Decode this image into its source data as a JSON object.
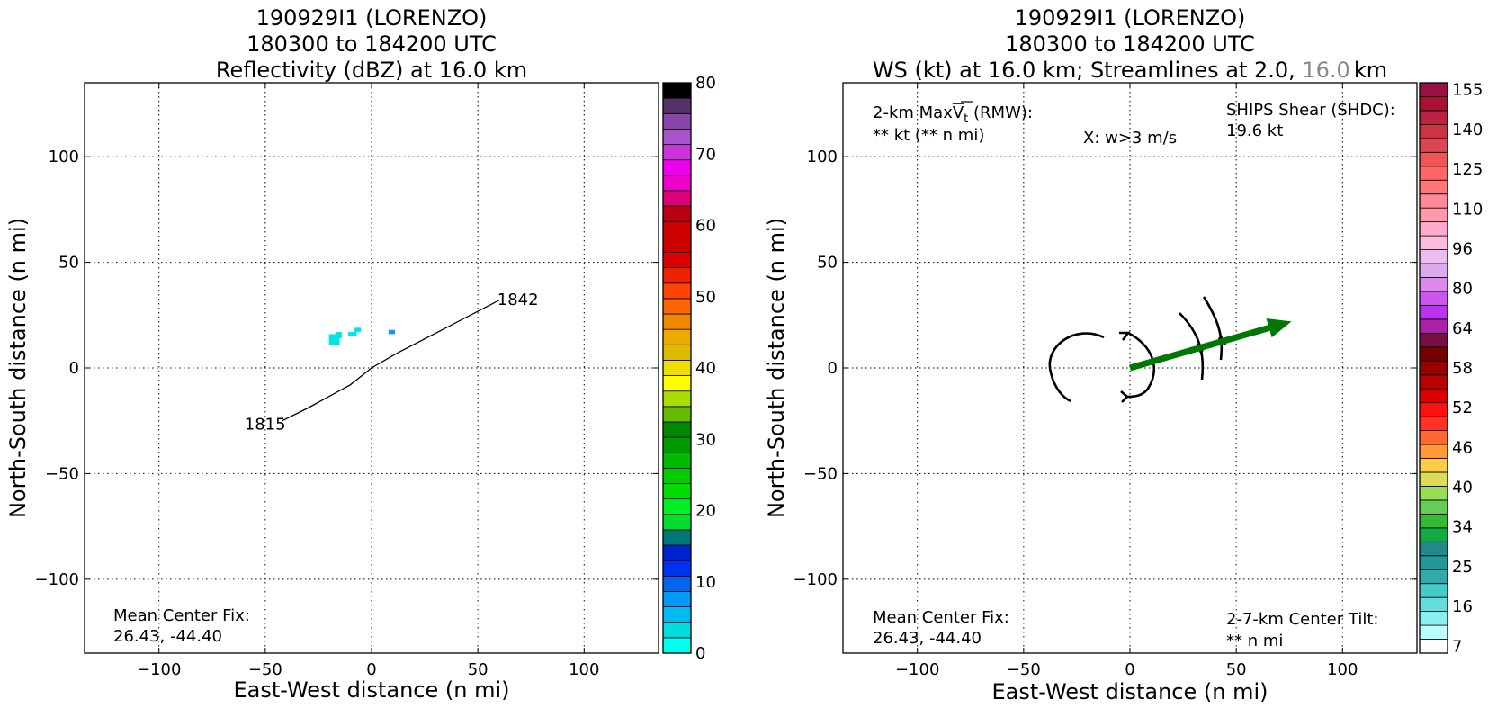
{
  "chart_data": [
    {
      "type": "heatmap",
      "title_lines": [
        "190929I1 (LORENZO)",
        "180300 to 184200 UTC",
        "Reflectivity (dBZ) at 16.0 km"
      ],
      "xlabel": "East-West distance (n mi)",
      "ylabel": "North-South distance (n mi)",
      "xlim": [
        -135,
        135
      ],
      "ylim": [
        -135,
        135
      ],
      "xticks": [
        -100,
        -50,
        0,
        50,
        100
      ],
      "yticks": [
        -100,
        -50,
        0,
        50,
        100
      ],
      "xtick_labels": [
        "−100",
        "−50",
        "0",
        "50",
        "100"
      ],
      "ytick_labels": [
        "−100",
        "−50",
        "0",
        "50",
        "100"
      ],
      "grid": true,
      "track": {
        "points": [
          [
            -42,
            -25
          ],
          [
            -30,
            -19
          ],
          [
            -10,
            -8
          ],
          [
            0,
            0
          ],
          [
            12,
            7
          ],
          [
            60,
            32
          ]
        ],
        "start_label": "1815",
        "end_label": "1842",
        "label_color": "#666666"
      },
      "echoes": [
        {
          "x": -20,
          "y": 11,
          "w": 5,
          "h": 5,
          "color": "#00e5e5"
        },
        {
          "x": -17,
          "y": 14,
          "w": 3,
          "h": 3,
          "color": "#00e5e5"
        },
        {
          "x": -11,
          "y": 15,
          "w": 4,
          "h": 2,
          "color": "#00e5e5"
        },
        {
          "x": -8,
          "y": 17,
          "w": 3,
          "h": 2,
          "color": "#00e5e5"
        },
        {
          "x": 8,
          "y": 16,
          "w": 3,
          "h": 2,
          "color": "#0aa0f0"
        }
      ],
      "annotations": {
        "center_fix_label": "Mean Center Fix:",
        "center_fix_value": "26.43, -44.40"
      },
      "colorbar": {
        "tick_labels": [
          "0",
          "10",
          "20",
          "30",
          "40",
          "50",
          "60",
          "70",
          "80"
        ],
        "colors": [
          "#00ffee",
          "#00dde0",
          "#00bbf0",
          "#0099f5",
          "#0066f0",
          "#0033f0",
          "#0022cc",
          "#007777",
          "#00dd33",
          "#00ee22",
          "#00dd00",
          "#00cc00",
          "#00bb00",
          "#009900",
          "#008800",
          "#66bb00",
          "#aadd00",
          "#ffff00",
          "#eedd00",
          "#ddbb00",
          "#eeaa00",
          "#ee8800",
          "#ff6600",
          "#ff4400",
          "#ee2200",
          "#dd0000",
          "#cc0000",
          "#cc0000",
          "#bb0011",
          "#dd0077",
          "#ee00cc",
          "#ee00ee",
          "#cc33dd",
          "#aa55cc",
          "#8844aa",
          "#553366",
          "#000000"
        ]
      }
    },
    {
      "type": "line",
      "title_lines": [
        "190929I1 (LORENZO)",
        "180300 to 184200 UTC"
      ],
      "title_line3_parts": [
        "WS (kt) at 16.0 km; Streamlines at 2.0, ",
        "16.0",
        "km"
      ],
      "title_line3_gray": "#888888",
      "xlabel": "East-West distance (n mi)",
      "ylabel": "North-South distance (n mi)",
      "xlim": [
        -135,
        135
      ],
      "ylim": [
        -135,
        135
      ],
      "xticks": [
        -100,
        -50,
        0,
        50,
        100
      ],
      "yticks": [
        -100,
        -50,
        0,
        50,
        100
      ],
      "xtick_labels": [
        "−100",
        "−50",
        "0",
        "50",
        "100"
      ],
      "ytick_labels": [
        "−100",
        "−50",
        "0",
        "50",
        "100"
      ],
      "grid": true,
      "annotations": {
        "maxvt_prefix": "2-km Max",
        "maxvt_symbol": "V",
        "maxvt_subscript": "t",
        "maxvt_suffix": " (RMW):",
        "maxvt_value": "** kt (** n mi)",
        "w_label": "X: w>3 m/s",
        "ships_label": "SHIPS Shear (SHDC):",
        "ships_value": "19.6 kt",
        "ships_color": "#008800",
        "center_fix_label": "Mean Center Fix:",
        "center_fix_value": "26.43, -44.40",
        "tilt_label": "2-7-km Center Tilt:",
        "tilt_value": "** n mi",
        "tilt_color": "#ff0000"
      },
      "shear_vector": {
        "x0": 0,
        "y0": 0,
        "x1": 76,
        "y1": 22,
        "color": "#007700"
      },
      "colorbar": {
        "tick_labels": [
          "7",
          "16",
          "25",
          "34",
          "40",
          "46",
          "52",
          "58",
          "64",
          "80",
          "96",
          "110",
          "125",
          "140",
          "155"
        ],
        "colors": [
          "#ffffff",
          "#bbffff",
          "#88f0f0",
          "#66dddd",
          "#44cccc",
          "#33aaaa",
          "#229999",
          "#228888",
          "#11aa44",
          "#33bb33",
          "#66cc55",
          "#99dd55",
          "#dddd55",
          "#ffcc44",
          "#ff9933",
          "#ff6633",
          "#ff3322",
          "#ff1111",
          "#dd0000",
          "#bb0000",
          "#990000",
          "#770000",
          "#771144",
          "#aa22aa",
          "#bb33ee",
          "#cc55ee",
          "#dd88ee",
          "#ddaaee",
          "#eebbee",
          "#ffbbdd",
          "#ffaacc",
          "#ff99aa",
          "#ff8899",
          "#ff7777",
          "#ff6666",
          "#ee5555",
          "#dd4455",
          "#cc3344",
          "#bb2244",
          "#aa1133",
          "#991144"
        ]
      }
    }
  ]
}
